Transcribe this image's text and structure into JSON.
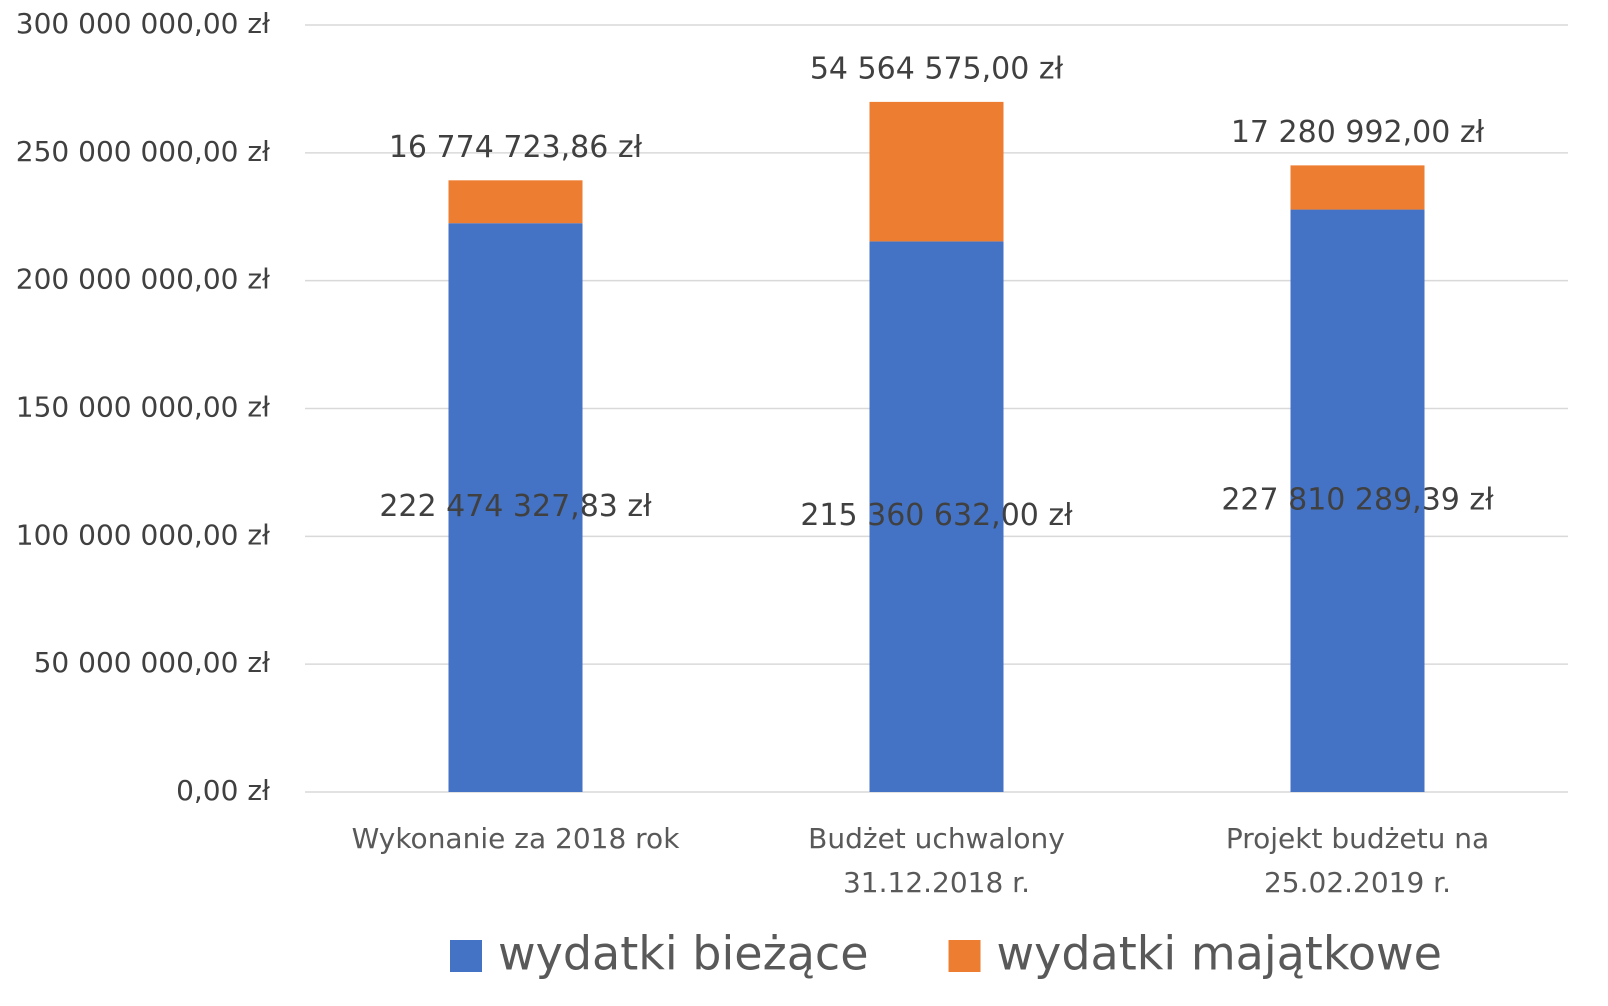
{
  "chart_data": {
    "type": "stacked_bar",
    "categories": [
      "Wykonanie za 2018 rok",
      "Budżet uchwalony 31.12.2018 r.",
      "Projekt budżetu na 25.02.2019 r."
    ],
    "series": [
      {
        "name": "wydatki bieżące",
        "color": "#4472c4",
        "values": [
          222474327.83,
          215360632,
          227810289.39
        ],
        "value_labels": [
          "222 474 327,83 zł",
          "215 360 632,00 zł",
          "227 810 289,39 zł"
        ]
      },
      {
        "name": "wydatki majątkowe",
        "color": "#ed7d31",
        "values": [
          16774723.86,
          54564575,
          17280992
        ],
        "value_labels": [
          "16 774 723,86 zł",
          "54 564 575,00 zł",
          "17 280 992,00 zł"
        ]
      }
    ],
    "ylim": [
      0,
      300000000
    ],
    "yticks": [
      {
        "value": 0,
        "label": "0,00 zł"
      },
      {
        "value": 50000000,
        "label": "50 000 000,00 zł"
      },
      {
        "value": 100000000,
        "label": "100 000 000,00 zł"
      },
      {
        "value": 150000000,
        "label": "150 000 000,00 zł"
      },
      {
        "value": 200000000,
        "label": "200 000 000,00 zł"
      },
      {
        "value": 250000000,
        "label": "250 000 000,00 zł"
      },
      {
        "value": 300000000,
        "label": "300 000 000,00 zł"
      }
    ],
    "grid": true,
    "legend": "bottom"
  }
}
